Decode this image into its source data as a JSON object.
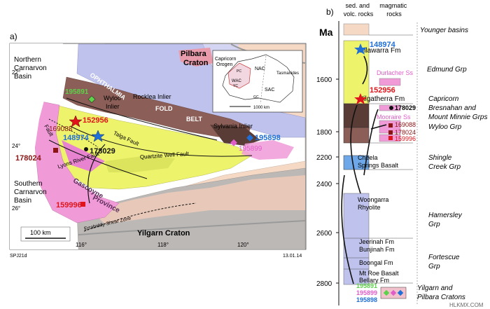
{
  "panels": {
    "a": "a)",
    "b": "b)"
  },
  "map": {
    "regions": {
      "pilbara": [
        "Pilbara",
        "Craton"
      ],
      "northern_carnarvon": [
        "Northern",
        "Carnarvon",
        "Basin"
      ],
      "southern_carnarvon": [
        "Southern",
        "Carnarvon",
        "Basin"
      ],
      "yilgarn": "Yilgarn Craton",
      "wyloo": [
        "Wyloo",
        "Inlier"
      ],
      "rocklea": "Rocklea Inlier",
      "sylvania": "Sylvania Inlier",
      "ophthalmia": "OPHTHALMIA",
      "fold": "FOLD",
      "belt": "BELT",
      "gascoyne": "Gascoyne",
      "province": "Province"
    },
    "faults": {
      "talga": "Talga Fault",
      "quartzite": "Quartzite Well Fault",
      "lyons": "Lyons River Fault",
      "errabiddy": "Errabiddy Shear Zone",
      "fault_stub": "Fault"
    },
    "lat_labels": [
      "22°",
      "24°",
      "26°"
    ],
    "lon_labels": [
      "116°",
      "118°",
      "120°"
    ],
    "samples": {
      "s195891": "195891",
      "s169088": "169088",
      "s152956": "152956",
      "s148974": "148974",
      "s178029": "178029",
      "s178024": "178024",
      "s159996": "159996",
      "s195898": "195898",
      "s195899": "195899"
    },
    "scale": "100 km",
    "code": "SPJ21d",
    "date": "13.01.14",
    "inset": {
      "capricorn": [
        "Capricorn",
        "Orogen"
      ],
      "nac": "NAC",
      "sac": "SAC",
      "wac": "WAC",
      "tasmanides": "Tasmanides",
      "pc": "PC",
      "yc": "YC",
      "gc": "GC",
      "scale": "1000 km"
    }
  },
  "strat": {
    "col_sed": [
      "sed. and",
      "volc. rocks"
    ],
    "col_mag": [
      "magmatic",
      "rocks"
    ],
    "ma": "Ma",
    "ticks": [
      "1600",
      "1800",
      "2200",
      "2400",
      "2600",
      "2800"
    ],
    "units": {
      "ullawarra": "Ullawarra Fm",
      "yilgatherra": "Yilgatherra Fm",
      "durlacher": "Durlacher Ss",
      "mooraire": "Mooraire Ss",
      "cheela": [
        "Cheela",
        "Springs Basalt"
      ],
      "woongarra": [
        "Woongarra",
        "Rhyolite"
      ],
      "jeerinah": "Jeerinah Fm",
      "bunjinah": "Bunjinah Fm",
      "boongal": "Boongal Fm",
      "mtroe": "Mt Roe Basalt",
      "bellary": "Bellary Fm"
    },
    "samples": {
      "s148974": "148974",
      "s152956": "152956",
      "s178029": "178029",
      "s169088": "169088",
      "s178024": "178024",
      "s159996": "159996",
      "s195891": "195891",
      "s195899": "195899",
      "s195898": "195898"
    },
    "groups": {
      "younger": "Younger basins",
      "edmund": "Edmund Grp",
      "capricorn": "Capricorn",
      "bresnahan": [
        "Bresnahan and",
        "Mount Minnie Grps"
      ],
      "wyloo": "Wyloo Grp",
      "shingle": [
        "Shingle",
        "Creek Grp"
      ],
      "hamersley": [
        "Hamersley",
        "Grp"
      ],
      "fortescue": [
        "Fortescue",
        "Grp"
      ],
      "yilgarn": [
        "Yilgarn and",
        "Pilbara Cratons"
      ]
    },
    "watermark": "HLKMX.COM"
  },
  "colors": {
    "edmund": "#eef36c",
    "ashburton": "#8b5e57",
    "gascoyne": "#f09bd8",
    "ophthalmia": "#bfc2ec",
    "hamersley": "#c9ccf1",
    "craton": "#f5d9c5",
    "yilgarn_grey": "#bcb8b6",
    "pilbara_pink": "#e79bab",
    "s_green": "#5ed14a",
    "s_blue": "#1f6fd6",
    "s_red": "#e0141a",
    "s_dark": "#8b1414",
    "s_pink": "#e05cc8",
    "s_purple": "#d05ae0",
    "s_black": "#111111"
  }
}
